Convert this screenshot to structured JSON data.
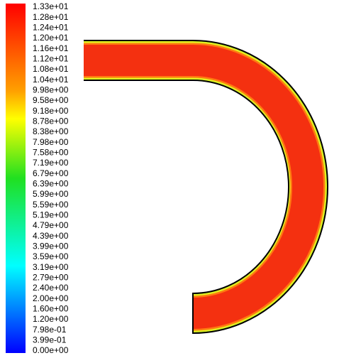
{
  "colorbar": {
    "labels": [
      "1.33e+01",
      "1.28e+01",
      "1.24e+01",
      "1.20e+01",
      "1.16e+01",
      "1.12e+01",
      "1.08e+01",
      "1.04e+01",
      "9.98e+00",
      "9.58e+00",
      "9.18e+00",
      "8.78e+00",
      "8.38e+00",
      "7.98e+00",
      "7.58e+00",
      "7.19e+00",
      "6.79e+00",
      "6.39e+00",
      "5.99e+00",
      "5.59e+00",
      "5.19e+00",
      "4.79e+00",
      "4.39e+00",
      "3.99e+00",
      "3.59e+00",
      "3.19e+00",
      "2.79e+00",
      "2.40e+00",
      "2.00e+00",
      "1.60e+00",
      "1.20e+00",
      "7.98e-01",
      "3.99e-01",
      "0.00e+00"
    ]
  }
}
